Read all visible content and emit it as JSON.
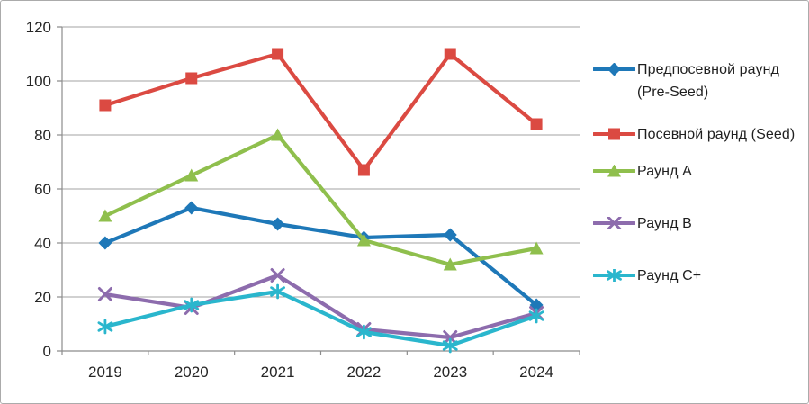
{
  "chart_data": {
    "type": "line",
    "title": "",
    "xlabel": "",
    "ylabel": "",
    "categories": [
      "2019",
      "2020",
      "2021",
      "2022",
      "2023",
      "2024"
    ],
    "series": [
      {
        "name": "Предпосевной раунд (Pre-Seed)",
        "marker": "diamond",
        "color": "#1e78b8",
        "values": [
          40,
          53,
          47,
          42,
          43,
          17
        ]
      },
      {
        "name": "Посевной раунд (Seed)",
        "marker": "square",
        "color": "#db4a42",
        "values": [
          91,
          101,
          110,
          67,
          110,
          84
        ]
      },
      {
        "name": "Раунд A",
        "marker": "triangle",
        "color": "#8fbf4d",
        "values": [
          50,
          65,
          80,
          41,
          32,
          38
        ]
      },
      {
        "name": "Раунд B",
        "marker": "x",
        "color": "#8d6cad",
        "values": [
          21,
          16,
          28,
          8,
          5,
          14
        ]
      },
      {
        "name": "Раунд C+",
        "marker": "asterisk",
        "color": "#2ab6cd",
        "values": [
          9,
          17,
          22,
          7,
          2,
          13
        ]
      }
    ],
    "ylim": [
      0,
      120
    ],
    "ytick_step": 20,
    "yticks": [
      "0",
      "20",
      "40",
      "60",
      "80",
      "100",
      "120"
    ],
    "grid": true,
    "legend_position": "right",
    "axis_color": "#8c8c8c",
    "gridline_color": "#a3a3a3",
    "tick_label_color": "#262626"
  }
}
